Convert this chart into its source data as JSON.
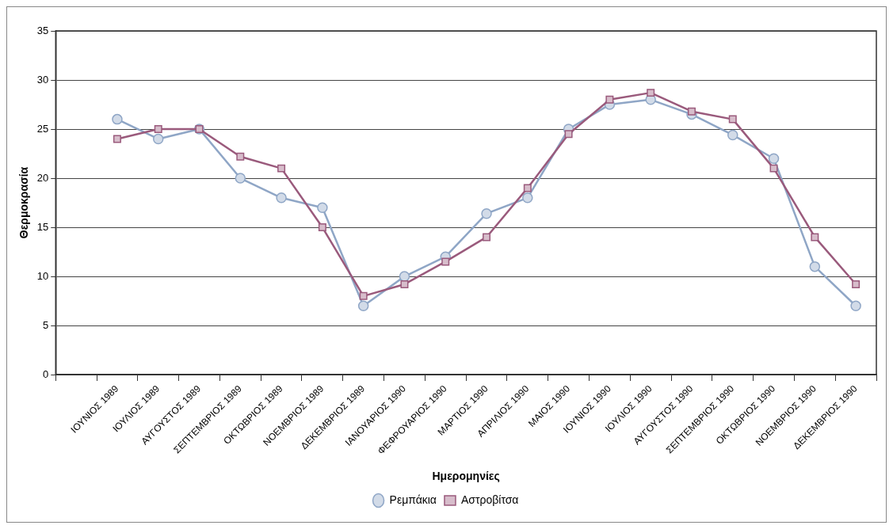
{
  "chart_data": {
    "type": "line",
    "xlabel": "Ημερομηνίες",
    "ylabel": "Θερμοκρασία",
    "categories": [
      null,
      "ΙΟΥΝΙΟΣ 1989",
      "ΙΟΥΛΙΟΣ 1989",
      "ΑΥΓΟΥΣΤΟΣ 1989",
      "ΣΕΠΤΕΜΒΡΙΟΣ 1989",
      "ΟΚΤΩΒΡΙΟΣ 1989",
      "ΝΟΕΜΒΡΙΟΣ 1989",
      "ΔΕΚΕΜΒΡΙΟΣ 1989",
      "ΙΑΝΟΥΑΡΙΟΣ 1990",
      "ΦΕΦΡΟΥΑΡΙΟΣ 1990",
      "ΜΑΡΤΙΟΣ 1990",
      "ΑΠΡΙΛΙΟΣ 1990",
      "ΜΑΙΟΣ 1990",
      "ΙΟΥΝΙΟΣ 1990",
      "ΙΟΥΛΙΟΣ 1990",
      "ΑΥΓΟΥΣΤΟΣ 1990",
      "ΣΕΠΤΕΜΒΡΙΟΣ 1990",
      "ΟΚΤΩΒΡΙΟΣ 1990",
      "ΝΟΕΜΒΡΙΟΣ 1990",
      "ΔΕΚΕΜΒΡΙΟΣ 1990"
    ],
    "series": [
      {
        "name": "Ρεμπάκια",
        "color": "#8fa6c6",
        "marker": "circle",
        "values": [
          null,
          26,
          24,
          25,
          20,
          18,
          17,
          7,
          10,
          12,
          16.4,
          18,
          25,
          27.5,
          28,
          26.5,
          24.4,
          22,
          11,
          7
        ]
      },
      {
        "name": "Αστροβίτσα",
        "color": "#9a5a7c",
        "marker": "square",
        "values": [
          null,
          24,
          25,
          25,
          22.2,
          21,
          15,
          8,
          9.2,
          11.5,
          14,
          19,
          24.5,
          28,
          28.7,
          26.8,
          26,
          21,
          14,
          9.2
        ]
      }
    ],
    "ylim": [
      0,
      35
    ],
    "yticks": [
      0,
      5,
      10,
      15,
      20,
      25,
      30,
      35
    ],
    "grid": "y",
    "legend": "bottom",
    "line_style": "solid"
  }
}
